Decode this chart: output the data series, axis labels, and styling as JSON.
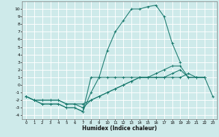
{
  "title": "",
  "xlabel": "Humidex (Indice chaleur)",
  "bg_color": "#ceeaea",
  "grid_color": "#ffffff",
  "line_color": "#1a7a6e",
  "xlim": [
    -0.5,
    23.5
  ],
  "ylim": [
    -4.5,
    11.0
  ],
  "xticks": [
    0,
    1,
    2,
    3,
    4,
    5,
    6,
    7,
    8,
    9,
    10,
    11,
    12,
    13,
    14,
    15,
    16,
    17,
    18,
    19,
    20,
    21,
    22,
    23
  ],
  "yticks": [
    -4,
    -3,
    -2,
    -1,
    0,
    1,
    2,
    3,
    4,
    5,
    6,
    7,
    8,
    9,
    10
  ],
  "lines": [
    {
      "x": [
        0,
        1,
        2,
        3,
        4,
        5,
        6,
        7,
        8,
        9,
        10,
        11,
        12,
        13,
        14,
        15,
        16,
        17,
        18,
        19
      ],
      "y": [
        -1.5,
        -2.0,
        -2.5,
        -2.5,
        -2.5,
        -3.0,
        -3.0,
        -3.5,
        -1.0,
        1.0,
        4.5,
        7.0,
        8.5,
        10.0,
        10.0,
        10.3,
        10.5,
        9.0,
        5.5,
        3.0
      ]
    },
    {
      "x": [
        0,
        1,
        2,
        3,
        4,
        5,
        6,
        7,
        8,
        9,
        10,
        11,
        12,
        13,
        14,
        15,
        16,
        17,
        18,
        19,
        20,
        21,
        22
      ],
      "y": [
        -1.5,
        -2.0,
        -2.5,
        -2.5,
        -2.5,
        -3.0,
        -3.0,
        -3.5,
        1.0,
        1.0,
        1.0,
        1.0,
        1.0,
        1.0,
        1.0,
        1.0,
        1.0,
        1.0,
        1.0,
        1.0,
        1.5,
        1.0,
        1.0
      ]
    },
    {
      "x": [
        0,
        1,
        2,
        3,
        4,
        5,
        6,
        7,
        8,
        9,
        10,
        11,
        12,
        13,
        14,
        15,
        16,
        17,
        18,
        19,
        20,
        21,
        22
      ],
      "y": [
        -1.5,
        -2.0,
        -2.0,
        -2.0,
        -2.0,
        -2.5,
        -2.5,
        -3.0,
        -2.0,
        -1.5,
        -1.0,
        -0.5,
        0.0,
        0.5,
        1.0,
        1.0,
        1.0,
        1.0,
        1.5,
        2.0,
        1.0,
        1.0,
        1.0
      ]
    },
    {
      "x": [
        0,
        1,
        2,
        3,
        4,
        5,
        6,
        7,
        8,
        9,
        10,
        11,
        12,
        13,
        14,
        15,
        16,
        17,
        18,
        19,
        20,
        21,
        22,
        23
      ],
      "y": [
        -1.5,
        -2.0,
        -2.0,
        -2.0,
        -2.0,
        -2.5,
        -2.5,
        -2.5,
        -2.0,
        -1.5,
        -1.0,
        -0.5,
        0.0,
        0.5,
        1.0,
        1.0,
        1.5,
        2.0,
        2.5,
        2.5,
        1.0,
        1.0,
        1.0,
        -1.5
      ]
    }
  ]
}
